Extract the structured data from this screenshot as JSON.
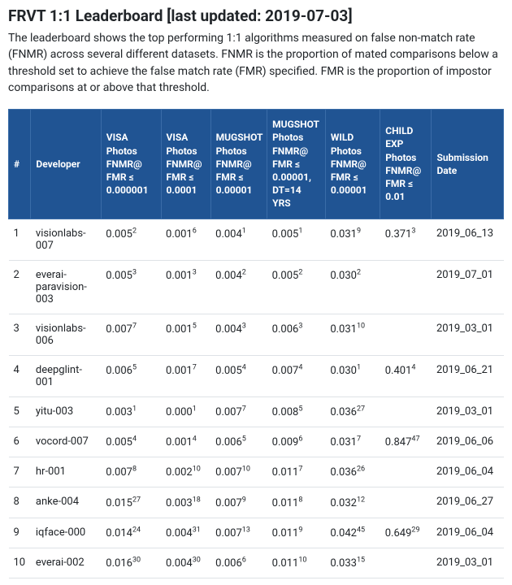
{
  "page": {
    "title": "FRVT 1:1 Leaderboard [last updated: 2019-07-03]",
    "description": "The leaderboard shows the top performing 1:1 algorithms measured on false non-match rate (FNMR) across several different datasets. FNMR is the proportion of mated comparisons below a threshold set to achieve the false match rate (FMR) specified. FMR is the proportion of impostor comparisons at or above that threshold."
  },
  "table": {
    "header_bg": "#205493",
    "header_fg": "#ffffff",
    "border_color": "#dee2e6",
    "columns": [
      {
        "key": "rank",
        "label": "#"
      },
      {
        "key": "developer",
        "label": "Developer"
      },
      {
        "key": "visa1",
        "label": "VISA Photos FNMR@ FMR ≤ 0.000001"
      },
      {
        "key": "visa2",
        "label": "VISA Photos FNMR@ FMR ≤ 0.0001"
      },
      {
        "key": "mug1",
        "label": "MUGSHOT Photos FNMR@ FMR ≤ 0.00001"
      },
      {
        "key": "mug2",
        "label": "MUGSHOT Photos FNMR@ FMR ≤ 0.00001, DT=14 YRS"
      },
      {
        "key": "wild",
        "label": "WILD Photos FNMR@ FMR ≤ 0.00001"
      },
      {
        "key": "child",
        "label": "CHILD EXP Photos FNMR@ FMR ≤ 0.01"
      },
      {
        "key": "date",
        "label": "Submission Date"
      }
    ],
    "rows": [
      {
        "rank": "1",
        "developer": "visionlabs-007",
        "visa1": {
          "v": "0.005",
          "s": "2"
        },
        "visa2": {
          "v": "0.001",
          "s": "6"
        },
        "mug1": {
          "v": "0.004",
          "s": "1"
        },
        "mug2": {
          "v": "0.005",
          "s": "1"
        },
        "wild": {
          "v": "0.031",
          "s": "9"
        },
        "child": {
          "v": "0.371",
          "s": "3"
        },
        "date": "2019_06_13"
      },
      {
        "rank": "2",
        "developer": "everai-paravision-003",
        "visa1": {
          "v": "0.005",
          "s": "3"
        },
        "visa2": {
          "v": "0.001",
          "s": "3"
        },
        "mug1": {
          "v": "0.004",
          "s": "2"
        },
        "mug2": {
          "v": "0.005",
          "s": "2"
        },
        "wild": {
          "v": "0.030",
          "s": "2"
        },
        "child": {
          "v": "",
          "s": ""
        },
        "date": "2019_07_01"
      },
      {
        "rank": "3",
        "developer": "visionlabs-006",
        "visa1": {
          "v": "0.007",
          "s": "7"
        },
        "visa2": {
          "v": "0.001",
          "s": "5"
        },
        "mug1": {
          "v": "0.004",
          "s": "3"
        },
        "mug2": {
          "v": "0.006",
          "s": "3"
        },
        "wild": {
          "v": "0.031",
          "s": "10"
        },
        "child": {
          "v": "",
          "s": ""
        },
        "date": "2019_03_01"
      },
      {
        "rank": "4",
        "developer": "deepglint-001",
        "visa1": {
          "v": "0.006",
          "s": "5"
        },
        "visa2": {
          "v": "0.001",
          "s": "7"
        },
        "mug1": {
          "v": "0.005",
          "s": "4"
        },
        "mug2": {
          "v": "0.007",
          "s": "4"
        },
        "wild": {
          "v": "0.030",
          "s": "1"
        },
        "child": {
          "v": "0.401",
          "s": "4"
        },
        "date": "2019_06_21"
      },
      {
        "rank": "5",
        "developer": "yitu-003",
        "visa1": {
          "v": "0.003",
          "s": "1"
        },
        "visa2": {
          "v": "0.000",
          "s": "1"
        },
        "mug1": {
          "v": "0.007",
          "s": "7"
        },
        "mug2": {
          "v": "0.008",
          "s": "5"
        },
        "wild": {
          "v": "0.036",
          "s": "27"
        },
        "child": {
          "v": "",
          "s": ""
        },
        "date": "2019_03_01"
      },
      {
        "rank": "6",
        "developer": "vocord-007",
        "visa1": {
          "v": "0.005",
          "s": "4"
        },
        "visa2": {
          "v": "0.001",
          "s": "4"
        },
        "mug1": {
          "v": "0.006",
          "s": "5"
        },
        "mug2": {
          "v": "0.009",
          "s": "6"
        },
        "wild": {
          "v": "0.031",
          "s": "7"
        },
        "child": {
          "v": "0.847",
          "s": "47"
        },
        "date": "2019_06_06"
      },
      {
        "rank": "7",
        "developer": "hr-001",
        "visa1": {
          "v": "0.007",
          "s": "8"
        },
        "visa2": {
          "v": "0.002",
          "s": "10"
        },
        "mug1": {
          "v": "0.007",
          "s": "10"
        },
        "mug2": {
          "v": "0.011",
          "s": "7"
        },
        "wild": {
          "v": "0.036",
          "s": "26"
        },
        "child": {
          "v": "",
          "s": ""
        },
        "date": "2019_06_04"
      },
      {
        "rank": "8",
        "developer": "anke-004",
        "visa1": {
          "v": "0.015",
          "s": "27"
        },
        "visa2": {
          "v": "0.003",
          "s": "18"
        },
        "mug1": {
          "v": "0.007",
          "s": "9"
        },
        "mug2": {
          "v": "0.011",
          "s": "8"
        },
        "wild": {
          "v": "0.032",
          "s": "12"
        },
        "child": {
          "v": "",
          "s": ""
        },
        "date": "2019_06_27"
      },
      {
        "rank": "9",
        "developer": "iqface-000",
        "visa1": {
          "v": "0.014",
          "s": "24"
        },
        "visa2": {
          "v": "0.004",
          "s": "31"
        },
        "mug1": {
          "v": "0.007",
          "s": "13"
        },
        "mug2": {
          "v": "0.011",
          "s": "9"
        },
        "wild": {
          "v": "0.042",
          "s": "45"
        },
        "child": {
          "v": "0.649",
          "s": "29"
        },
        "date": "2019_06_04"
      },
      {
        "rank": "10",
        "developer": "everai-002",
        "visa1": {
          "v": "0.016",
          "s": "30"
        },
        "visa2": {
          "v": "0.004",
          "s": "30"
        },
        "mug1": {
          "v": "0.006",
          "s": "6"
        },
        "mug2": {
          "v": "0.011",
          "s": "10"
        },
        "wild": {
          "v": "0.033",
          "s": "15"
        },
        "child": {
          "v": "",
          "s": ""
        },
        "date": "2019_03_01"
      }
    ]
  }
}
